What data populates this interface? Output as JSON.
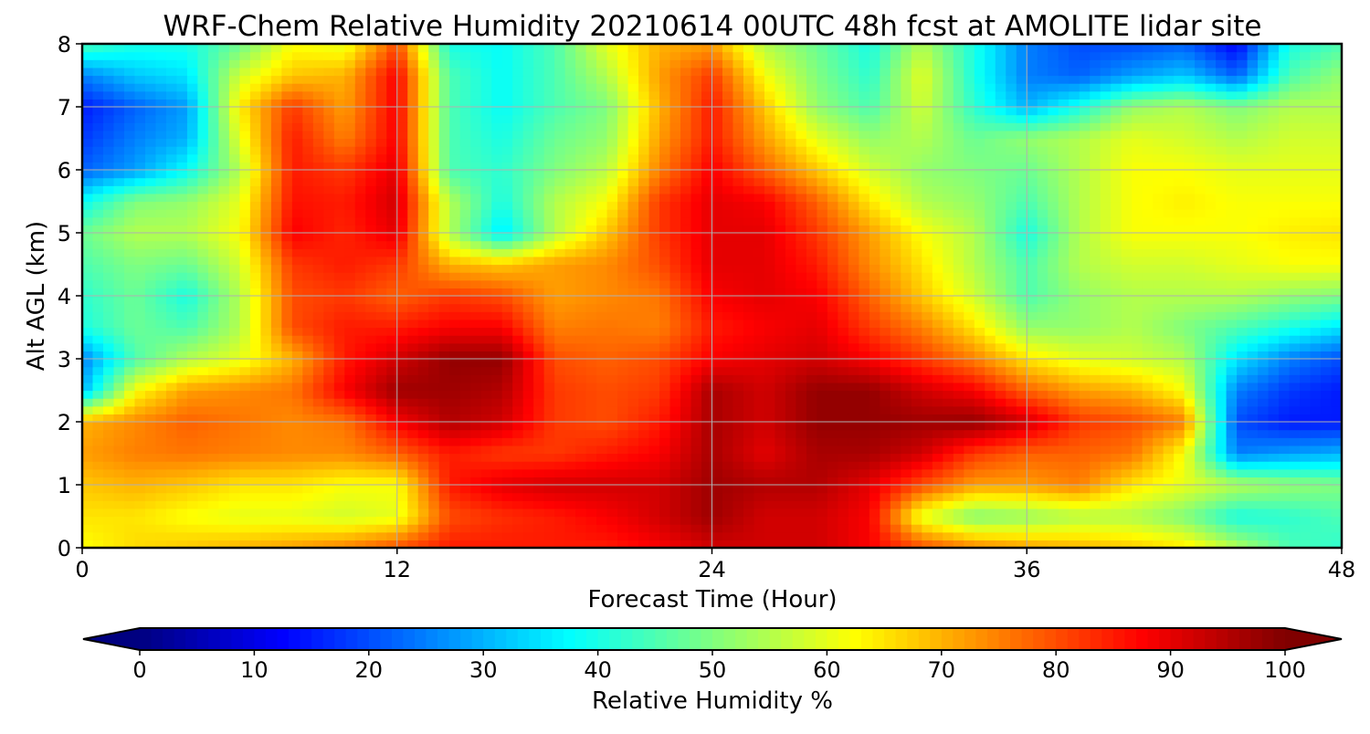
{
  "chart_data": {
    "type": "heatmap",
    "title": "WRF-Chem Relative Humidity 20210614 00UTC 48h fcst at AMOLITE lidar site",
    "xlabel": "Forecast Time (Hour)",
    "ylabel": "Alt AGL (km)",
    "xlim": [
      0,
      48
    ],
    "ylim": [
      0,
      8
    ],
    "x_ticks": [
      0,
      12,
      24,
      36,
      48
    ],
    "y_ticks": [
      0,
      1,
      2,
      3,
      4,
      5,
      6,
      7,
      8
    ],
    "grid": true,
    "colorbar": {
      "label": "Relative Humidity %",
      "min": 0,
      "max": 100,
      "ticks": [
        0,
        10,
        20,
        30,
        40,
        50,
        60,
        70,
        80,
        90,
        100
      ],
      "extend": "both",
      "colormap": "jet",
      "orientation": "horizontal",
      "placement": "bottom"
    },
    "x": [
      0,
      2,
      4,
      6,
      8,
      10,
      12,
      14,
      16,
      18,
      20,
      22,
      24,
      26,
      28,
      30,
      32,
      34,
      36,
      38,
      40,
      42,
      44,
      46,
      48
    ],
    "y": [
      0,
      0.5,
      1,
      1.5,
      2,
      2.5,
      3,
      3.5,
      4,
      4.5,
      5,
      5.5,
      6,
      6.5,
      7,
      7.5,
      8
    ],
    "values": [
      [
        62,
        66,
        68,
        70,
        72,
        75,
        80,
        85,
        85,
        85,
        85,
        88,
        92,
        92,
        92,
        88,
        80,
        75,
        72,
        70,
        68,
        65,
        55,
        45,
        42
      ],
      [
        65,
        65,
        62,
        60,
        60,
        58,
        60,
        80,
        83,
        85,
        88,
        92,
        97,
        92,
        92,
        88,
        60,
        50,
        52,
        55,
        55,
        50,
        40,
        42,
        45
      ],
      [
        68,
        70,
        68,
        65,
        65,
        62,
        62,
        85,
        90,
        92,
        92,
        92,
        97,
        95,
        95,
        90,
        80,
        72,
        72,
        75,
        65,
        60,
        55,
        52,
        50
      ],
      [
        72,
        75,
        76,
        75,
        74,
        74,
        78,
        85,
        82,
        82,
        85,
        88,
        96,
        90,
        96,
        96,
        92,
        82,
        78,
        78,
        76,
        62,
        25,
        28,
        30
      ],
      [
        70,
        74,
        78,
        76,
        74,
        76,
        88,
        95,
        92,
        82,
        80,
        85,
        96,
        92,
        98,
        98,
        97,
        98,
        92,
        82,
        80,
        75,
        20,
        15,
        15
      ],
      [
        30,
        62,
        72,
        74,
        76,
        88,
        97,
        97,
        95,
        82,
        80,
        82,
        96,
        92,
        98,
        98,
        92,
        88,
        78,
        72,
        70,
        62,
        25,
        18,
        15
      ],
      [
        25,
        45,
        55,
        60,
        70,
        85,
        92,
        98,
        98,
        80,
        78,
        80,
        88,
        90,
        92,
        88,
        82,
        75,
        65,
        60,
        58,
        55,
        35,
        25,
        20
      ],
      [
        40,
        48,
        45,
        55,
        80,
        85,
        85,
        88,
        88,
        75,
        76,
        75,
        85,
        88,
        90,
        82,
        75,
        65,
        52,
        52,
        55,
        50,
        45,
        40,
        35
      ],
      [
        42,
        48,
        40,
        55,
        80,
        82,
        78,
        82,
        80,
        72,
        74,
        76,
        88,
        90,
        88,
        78,
        68,
        58,
        45,
        52,
        55,
        55,
        55,
        52,
        50
      ],
      [
        45,
        50,
        48,
        58,
        82,
        85,
        82,
        70,
        68,
        72,
        74,
        80,
        90,
        90,
        85,
        74,
        65,
        55,
        45,
        55,
        58,
        58,
        60,
        62,
        62
      ],
      [
        48,
        55,
        55,
        62,
        88,
        84,
        90,
        55,
        35,
        55,
        68,
        82,
        90,
        90,
        82,
        72,
        62,
        55,
        40,
        55,
        62,
        62,
        62,
        64,
        65
      ],
      [
        38,
        50,
        52,
        60,
        86,
        85,
        92,
        55,
        40,
        55,
        62,
        82,
        90,
        88,
        78,
        65,
        55,
        52,
        45,
        55,
        62,
        64,
        62,
        62,
        62
      ],
      [
        22,
        28,
        38,
        55,
        85,
        82,
        90,
        45,
        42,
        50,
        56,
        75,
        88,
        78,
        68,
        58,
        52,
        50,
        48,
        55,
        62,
        62,
        60,
        60,
        60
      ],
      [
        18,
        25,
        30,
        60,
        85,
        75,
        88,
        45,
        40,
        48,
        52,
        72,
        85,
        72,
        60,
        52,
        55,
        48,
        52,
        55,
        60,
        58,
        55,
        58,
        58
      ],
      [
        15,
        22,
        28,
        64,
        82,
        72,
        88,
        45,
        38,
        45,
        50,
        70,
        85,
        68,
        52,
        45,
        58,
        42,
        30,
        40,
        52,
        55,
        50,
        55,
        55
      ],
      [
        25,
        32,
        35,
        58,
        68,
        70,
        88,
        45,
        38,
        45,
        55,
        72,
        82,
        62,
        50,
        42,
        60,
        40,
        25,
        22,
        28,
        32,
        22,
        45,
        52
      ],
      [
        45,
        40,
        40,
        48,
        62,
        60,
        80,
        40,
        38,
        45,
        60,
        70,
        72,
        55,
        48,
        40,
        55,
        40,
        25,
        20,
        20,
        22,
        12,
        40,
        45
      ]
    ]
  }
}
